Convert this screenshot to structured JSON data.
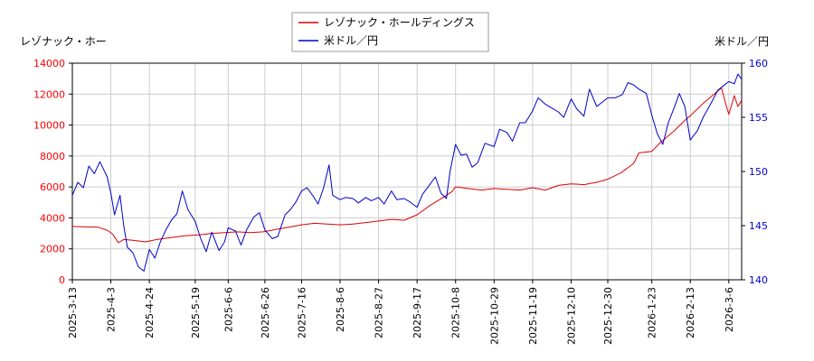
{
  "chart_data": {
    "type": "line",
    "title": "",
    "grid": true,
    "legend_placement": "top-center",
    "x_dates": [
      "2025-3-13",
      "2025-4-3",
      "2025-4-24",
      "2025-5-19",
      "2025-6-6",
      "2025-6-26",
      "2025-7-16",
      "2025-8-6",
      "2025-8-27",
      "2025-9-17",
      "2025-10-8",
      "2025-10-29",
      "2025-11-19",
      "2025-12-10",
      "2025-12-30",
      "2026-1-23",
      "2026-2-13",
      "2026-3-6"
    ],
    "x_end": "2026-3-13",
    "left_axis": {
      "label": "レゾナック・ホー",
      "ylim": [
        0,
        14000
      ],
      "ticks": [
        "0",
        "2000",
        "4000",
        "6000",
        "8000",
        "10000",
        "12000",
        "14000"
      ],
      "color": "#ff0000"
    },
    "right_axis": {
      "label": "米ドル／円",
      "ylim": [
        140,
        160
      ],
      "ticks": [
        "140",
        "145",
        "150",
        "155",
        "160"
      ],
      "color": "#0000cc"
    },
    "series": [
      {
        "name": "レゾナック・ホールディングス",
        "axis": "left",
        "color": "#dd0000",
        "points": [
          [
            "2025-3-13",
            3450
          ],
          [
            "2025-3-20",
            3420
          ],
          [
            "2025-3-27",
            3400
          ],
          [
            "2025-4-1",
            3200
          ],
          [
            "2025-4-4",
            2950
          ],
          [
            "2025-4-7",
            2400
          ],
          [
            "2025-4-10",
            2600
          ],
          [
            "2025-4-15",
            2550
          ],
          [
            "2025-4-22",
            2450
          ],
          [
            "2025-4-28",
            2600
          ],
          [
            "2025-5-7",
            2750
          ],
          [
            "2025-5-14",
            2850
          ],
          [
            "2025-5-21",
            2900
          ],
          [
            "2025-5-28",
            3000
          ],
          [
            "2025-6-4",
            3050
          ],
          [
            "2025-6-11",
            3100
          ],
          [
            "2025-6-18",
            3050
          ],
          [
            "2025-6-25",
            3100
          ],
          [
            "2025-7-2",
            3250
          ],
          [
            "2025-7-9",
            3400
          ],
          [
            "2025-7-16",
            3550
          ],
          [
            "2025-7-23",
            3650
          ],
          [
            "2025-7-30",
            3600
          ],
          [
            "2025-8-6",
            3550
          ],
          [
            "2025-8-13",
            3600
          ],
          [
            "2025-8-20",
            3700
          ],
          [
            "2025-8-27",
            3800
          ],
          [
            "2025-9-3",
            3900
          ],
          [
            "2025-9-10",
            3850
          ],
          [
            "2025-9-17",
            4200
          ],
          [
            "2025-9-24",
            4800
          ],
          [
            "2025-10-1",
            5300
          ],
          [
            "2025-10-6",
            5700
          ],
          [
            "2025-10-8",
            6000
          ],
          [
            "2025-10-15",
            5900
          ],
          [
            "2025-10-22",
            5800
          ],
          [
            "2025-10-29",
            5900
          ],
          [
            "2025-11-5",
            5850
          ],
          [
            "2025-11-12",
            5800
          ],
          [
            "2025-11-19",
            5950
          ],
          [
            "2025-11-26",
            5800
          ],
          [
            "2025-12-3",
            6100
          ],
          [
            "2025-12-10",
            6200
          ],
          [
            "2025-12-17",
            6150
          ],
          [
            "2025-12-24",
            6300
          ],
          [
            "2025-12-30",
            6500
          ],
          [
            "2026-1-6",
            6900
          ],
          [
            "2026-1-13",
            7500
          ],
          [
            "2026-1-16",
            8200
          ],
          [
            "2026-1-23",
            8300
          ],
          [
            "2026-1-28",
            8900
          ],
          [
            "2026-2-4",
            9600
          ],
          [
            "2026-2-10",
            10300
          ],
          [
            "2026-2-13",
            10600
          ],
          [
            "2026-2-20",
            11400
          ],
          [
            "2026-2-26",
            12000
          ],
          [
            "2026-3-2",
            12400
          ],
          [
            "2026-3-4",
            11500
          ],
          [
            "2026-3-6",
            10700
          ],
          [
            "2026-3-9",
            11900
          ],
          [
            "2026-3-11",
            11200
          ],
          [
            "2026-3-13",
            11600
          ]
        ]
      },
      {
        "name": "米ドル／円",
        "axis": "right",
        "color": "#0000cc",
        "points": [
          [
            "2025-3-13",
            147.8
          ],
          [
            "2025-3-16",
            149.0
          ],
          [
            "2025-3-19",
            148.5
          ],
          [
            "2025-3-22",
            150.5
          ],
          [
            "2025-3-25",
            149.8
          ],
          [
            "2025-3-28",
            150.9
          ],
          [
            "2025-4-1",
            149.5
          ],
          [
            "2025-4-3",
            148.0
          ],
          [
            "2025-4-5",
            146.0
          ],
          [
            "2025-4-8",
            147.8
          ],
          [
            "2025-4-10",
            145.0
          ],
          [
            "2025-4-12",
            143.0
          ],
          [
            "2025-4-15",
            142.5
          ],
          [
            "2025-4-18",
            141.2
          ],
          [
            "2025-4-21",
            140.8
          ],
          [
            "2025-4-24",
            142.8
          ],
          [
            "2025-4-27",
            142.0
          ],
          [
            "2025-4-30",
            143.5
          ],
          [
            "2025-5-3",
            144.6
          ],
          [
            "2025-5-6",
            145.5
          ],
          [
            "2025-5-9",
            146.1
          ],
          [
            "2025-5-12",
            148.2
          ],
          [
            "2025-5-15",
            146.5
          ],
          [
            "2025-5-19",
            145.4
          ],
          [
            "2025-5-22",
            143.8
          ],
          [
            "2025-5-25",
            142.6
          ],
          [
            "2025-5-28",
            144.4
          ],
          [
            "2025-6-1",
            142.7
          ],
          [
            "2025-6-4",
            143.5
          ],
          [
            "2025-6-6",
            144.8
          ],
          [
            "2025-6-10",
            144.5
          ],
          [
            "2025-6-13",
            143.2
          ],
          [
            "2025-6-16",
            144.6
          ],
          [
            "2025-6-20",
            145.8
          ],
          [
            "2025-6-23",
            146.2
          ],
          [
            "2025-6-26",
            144.6
          ],
          [
            "2025-6-30",
            143.8
          ],
          [
            "2025-7-3",
            144.0
          ],
          [
            "2025-7-7",
            146.0
          ],
          [
            "2025-7-10",
            146.5
          ],
          [
            "2025-7-13",
            147.2
          ],
          [
            "2025-7-16",
            148.2
          ],
          [
            "2025-7-19",
            148.5
          ],
          [
            "2025-7-22",
            147.8
          ],
          [
            "2025-7-25",
            147.0
          ],
          [
            "2025-7-28",
            148.5
          ],
          [
            "2025-7-31",
            150.6
          ],
          [
            "2025-8-2",
            147.8
          ],
          [
            "2025-8-6",
            147.4
          ],
          [
            "2025-8-9",
            147.6
          ],
          [
            "2025-8-13",
            147.5
          ],
          [
            "2025-8-16",
            147.1
          ],
          [
            "2025-8-20",
            147.6
          ],
          [
            "2025-8-23",
            147.3
          ],
          [
            "2025-8-27",
            147.6
          ],
          [
            "2025-8-30",
            147.0
          ],
          [
            "2025-9-3",
            148.2
          ],
          [
            "2025-9-6",
            147.4
          ],
          [
            "2025-9-10",
            147.5
          ],
          [
            "2025-9-13",
            147.2
          ],
          [
            "2025-9-17",
            146.7
          ],
          [
            "2025-9-20",
            147.9
          ],
          [
            "2025-9-24",
            148.8
          ],
          [
            "2025-9-27",
            149.5
          ],
          [
            "2025-9-30",
            148.0
          ],
          [
            "2025-10-3",
            147.5
          ],
          [
            "2025-10-5",
            150.0
          ],
          [
            "2025-10-8",
            152.5
          ],
          [
            "2025-10-11",
            151.5
          ],
          [
            "2025-10-14",
            151.6
          ],
          [
            "2025-10-17",
            150.4
          ],
          [
            "2025-10-20",
            150.8
          ],
          [
            "2025-10-24",
            152.6
          ],
          [
            "2025-10-29",
            152.3
          ],
          [
            "2025-11-1",
            153.9
          ],
          [
            "2025-11-5",
            153.6
          ],
          [
            "2025-11-8",
            152.8
          ],
          [
            "2025-11-12",
            154.5
          ],
          [
            "2025-11-15",
            154.5
          ],
          [
            "2025-11-19",
            155.6
          ],
          [
            "2025-11-22",
            156.8
          ],
          [
            "2025-11-26",
            156.2
          ],
          [
            "2025-11-29",
            155.9
          ],
          [
            "2025-12-3",
            155.5
          ],
          [
            "2025-12-6",
            155.0
          ],
          [
            "2025-12-10",
            156.7
          ],
          [
            "2025-12-13",
            155.8
          ],
          [
            "2025-12-17",
            155.1
          ],
          [
            "2025-12-20",
            157.6
          ],
          [
            "2025-12-24",
            156.0
          ],
          [
            "2025-12-30",
            156.8
          ],
          [
            "2026-1-3",
            156.8
          ],
          [
            "2026-1-7",
            157.1
          ],
          [
            "2026-1-10",
            158.2
          ],
          [
            "2026-1-13",
            158.0
          ],
          [
            "2026-1-16",
            157.6
          ],
          [
            "2026-1-20",
            157.2
          ],
          [
            "2026-1-23",
            155.2
          ],
          [
            "2026-1-26",
            153.5
          ],
          [
            "2026-1-29",
            152.5
          ],
          [
            "2026-2-1",
            154.5
          ],
          [
            "2026-2-4",
            155.8
          ],
          [
            "2026-2-7",
            157.2
          ],
          [
            "2026-2-10",
            156.0
          ],
          [
            "2026-2-13",
            152.9
          ],
          [
            "2026-2-17",
            153.8
          ],
          [
            "2026-2-20",
            155.0
          ],
          [
            "2026-2-24",
            156.2
          ],
          [
            "2026-2-28",
            157.5
          ],
          [
            "2026-3-3",
            157.9
          ],
          [
            "2026-3-6",
            158.3
          ],
          [
            "2026-3-9",
            158.1
          ],
          [
            "2026-3-11",
            159.0
          ],
          [
            "2026-3-13",
            158.5
          ]
        ]
      }
    ]
  }
}
